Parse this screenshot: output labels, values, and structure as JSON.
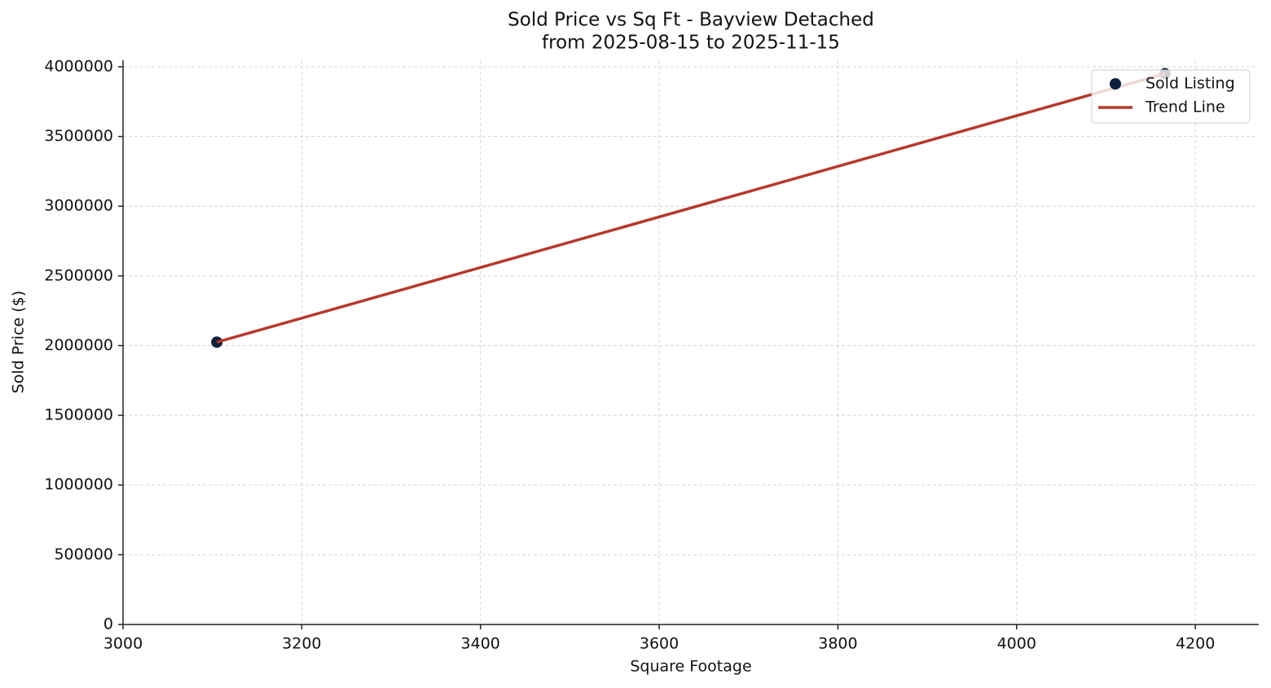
{
  "chart_data": {
    "type": "scatter",
    "title": "Sold Price vs Sq Ft - Bayview Detached",
    "subtitle": "from 2025-08-15 to 2025-11-15",
    "x_label": "Square Footage",
    "y_label": "Sold Price ($)",
    "x": [
      3105,
      4166
    ],
    "series": [
      {
        "name": "Sold Listing",
        "color": "#0d1f3c",
        "mode": "markers",
        "values": [
          2025000,
          3950000
        ]
      },
      {
        "name": "Trend Line",
        "color": "#b5392e",
        "mode": "line",
        "values": [
          2025000,
          3950000
        ]
      }
    ],
    "xlim": [
      3000,
      4271
    ],
    "ylim": [
      0,
      4046700
    ],
    "xticks": [
      3000,
      3200,
      3400,
      3600,
      3800,
      4000,
      4200
    ],
    "yticks": [
      0,
      500000,
      1000000,
      1500000,
      2000000,
      2500000,
      3000000,
      3500000,
      4000000
    ],
    "grid": true,
    "legend": "upper right"
  }
}
